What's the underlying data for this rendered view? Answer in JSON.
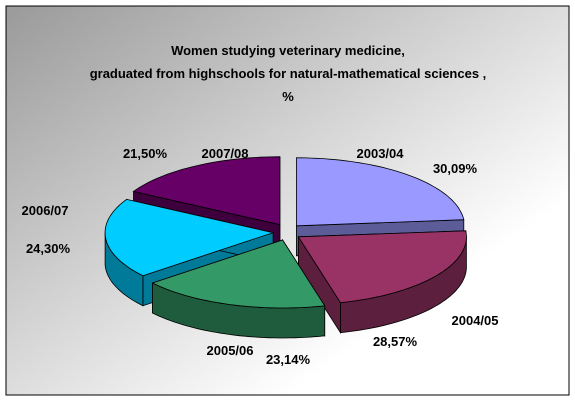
{
  "chart_data": {
    "type": "pie3d",
    "title": [
      "Women studying veterinary medicine,",
      "graduated from highschools for natural-mathematical sciences ,",
      "%"
    ],
    "categories": [
      "2003/04",
      "2004/05",
      "2005/06",
      "2006/07",
      "2007/08"
    ],
    "values": [
      30.09,
      28.57,
      23.14,
      24.3,
      21.5
    ],
    "value_labels": [
      "30,09%",
      "28,57%",
      "23,14%",
      "24,30%",
      "21,50%"
    ],
    "colors": [
      "#9999ff",
      "#993366",
      "#339966",
      "#00ccff",
      "#660066"
    ]
  }
}
